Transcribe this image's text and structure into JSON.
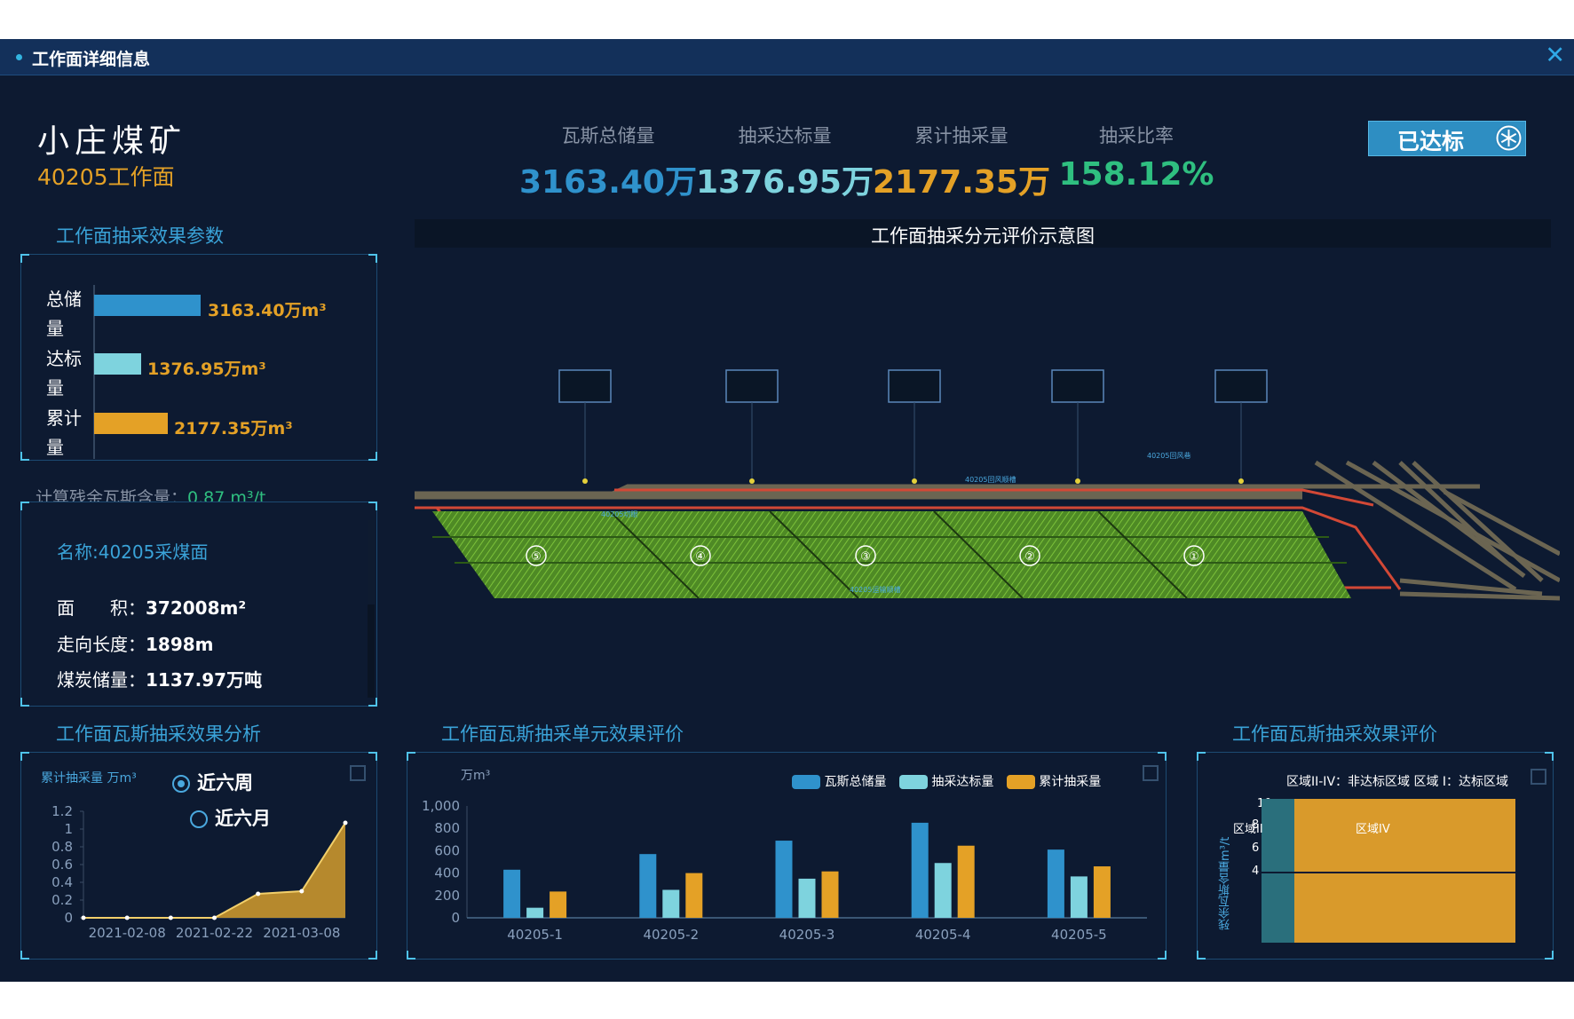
{
  "window": {
    "title": "工作面详细信息",
    "close_glyph": "✕"
  },
  "mine": {
    "name": "小庄煤矿",
    "face": "40205工作面"
  },
  "stats": [
    {
      "label": "瓦斯总储量",
      "value": "3163.40万",
      "color": "#2f92cc"
    },
    {
      "label": "抽采达标量",
      "value": "1376.95万",
      "color": "#7ed3de"
    },
    {
      "label": "累计抽采量",
      "value": "2177.35万",
      "color": "#e4a126"
    },
    {
      "label": "抽采比率",
      "value": "158.12%",
      "color": "#2fbf80"
    }
  ],
  "status_badge": {
    "label": "已达标",
    "icon": "snowflake-icon"
  },
  "params_panel": {
    "title": "工作面抽采效果参数",
    "bars": [
      {
        "label": "总储量",
        "value": 3163.4,
        "display": "3163.40万m³",
        "color": "#2f92cc"
      },
      {
        "label": "达标量",
        "value": 1376.95,
        "display": "1376.95万m³",
        "color": "#7ed3de"
      },
      {
        "label": "累计量",
        "value": 2177.35,
        "display": "2177.35万m³",
        "color": "#e4a126"
      }
    ],
    "residual_label": "计算残余瓦斯含量：",
    "residual_value": "0.87 m³/t"
  },
  "info_panel": {
    "name": "名称:40205采煤面",
    "rows": [
      {
        "label": "面　　积：",
        "value": "372008m²"
      },
      {
        "label": "走向长度：",
        "value": "1898m"
      },
      {
        "label": "煤炭储量：",
        "value": "1137.97万吨"
      }
    ]
  },
  "diagram": {
    "title": "工作面抽采分元评价示意图",
    "units": [
      "⑤",
      "④",
      "③",
      "②",
      "①"
    ],
    "labels": {
      "bottom_road": "40205运输顺槽",
      "top_road": "40205回风顺槽",
      "top_right": "40205回风巷",
      "inner": "40205切眼"
    }
  },
  "analysis_panel": {
    "title": "工作面瓦斯抽采效果分析",
    "ylabel": "累计抽采量 万m³",
    "radios": [
      {
        "label": "近六周",
        "selected": true
      },
      {
        "label": "近六月",
        "selected": false
      }
    ],
    "chart_data": {
      "type": "area",
      "x": [
        "2021-02-01",
        "2021-02-08",
        "2021-02-15",
        "2021-02-22",
        "2021-03-01",
        "2021-03-08",
        "2021-03-15"
      ],
      "y": [
        0,
        0,
        0,
        0,
        0.27,
        0.3,
        1.07
      ],
      "xticks": [
        "2021-02-08",
        "2021-02-22",
        "2021-03-08"
      ],
      "yticks": [
        "0",
        "0.2",
        "0.4",
        "0.6",
        "0.8",
        "1",
        "1.2"
      ],
      "ylim": [
        0,
        1.2
      ],
      "color": "#c9962e"
    }
  },
  "unit_eval_panel": {
    "title": "工作面瓦斯抽采单元效果评价",
    "unit": "万m³",
    "chart_data": {
      "type": "bar",
      "categories": [
        "40205-1",
        "40205-2",
        "40205-3",
        "40205-4",
        "40205-5"
      ],
      "series": [
        {
          "name": "瓦斯总储量",
          "values": [
            430,
            570,
            690,
            850,
            610
          ],
          "color": "#2f92cc"
        },
        {
          "name": "抽采达标量",
          "values": [
            90,
            250,
            350,
            490,
            370
          ],
          "color": "#7ed3de"
        },
        {
          "name": "累计抽采量",
          "values": [
            235,
            400,
            415,
            645,
            460
          ],
          "color": "#e4a126"
        }
      ],
      "yticks": [
        "0",
        "200",
        "400",
        "600",
        "800",
        "1,000"
      ],
      "ylim": [
        0,
        1000
      ]
    }
  },
  "effect_eval_panel": {
    "title": "工作面瓦斯抽采效果评价",
    "legend": "区域II-IV：非达标区域 区域 I：达标区域",
    "ylabel": "残余瓦斯含量m³/t",
    "yticks": [
      "4",
      "6",
      "8",
      "10"
    ],
    "region_ii": "区域II",
    "region_iv": "区域IV",
    "colors": {
      "region_ii": "#2a6f7c",
      "region_iv": "#d99a2b"
    }
  }
}
